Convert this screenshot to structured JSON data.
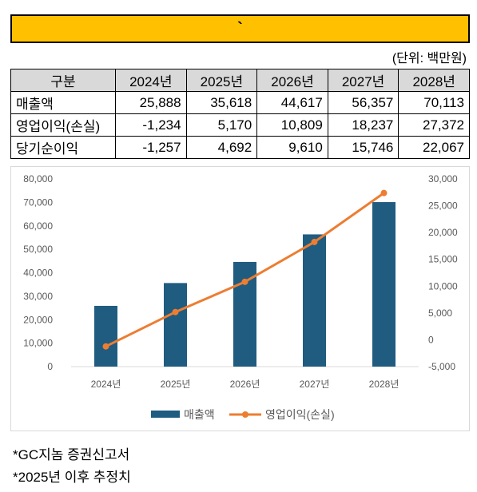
{
  "title": "`",
  "unit_label": "(단위: 백만원)",
  "table": {
    "header": [
      "구분",
      "2024년",
      "2025년",
      "2026년",
      "2027년",
      "2028년"
    ],
    "rows": [
      {
        "label": "매출액",
        "values": [
          "25,888",
          "35,618",
          "44,617",
          "56,357",
          "70,113"
        ]
      },
      {
        "label": "영업이익(손실)",
        "values": [
          "-1,234",
          "5,170",
          "10,809",
          "18,237",
          "27,372"
        ]
      },
      {
        "label": "당기순이익",
        "values": [
          "-1,257",
          "4,692",
          "9,610",
          "15,746",
          "22,067"
        ]
      }
    ]
  },
  "chart_data": {
    "type": "bar",
    "categories": [
      "2024년",
      "2025년",
      "2026년",
      "2027년",
      "2028년"
    ],
    "series": [
      {
        "name": "매출액",
        "type": "bar",
        "axis": "left",
        "color": "#1f5c80",
        "values": [
          25888,
          35618,
          44617,
          56357,
          70113
        ]
      },
      {
        "name": "영업이익(손실)",
        "type": "line",
        "axis": "right",
        "color": "#ed7d31",
        "values": [
          -1234,
          5170,
          10809,
          18237,
          27372
        ]
      }
    ],
    "y_left": {
      "min": 0,
      "max": 80000,
      "step": 10000,
      "tick_labels": [
        "0",
        "10,000",
        "20,000",
        "30,000",
        "40,000",
        "50,000",
        "60,000",
        "70,000",
        "80,000"
      ]
    },
    "y_right": {
      "min": -5000,
      "max": 30000,
      "step": 5000,
      "tick_labels": [
        "-5,000",
        "0",
        "5,000",
        "10,000",
        "15,000",
        "20,000",
        "25,000",
        "30,000"
      ]
    },
    "grid": false,
    "legend_position": "bottom"
  },
  "notes": [
    "*GC지놈 증권신고서",
    "*2025년 이후 추정치"
  ]
}
